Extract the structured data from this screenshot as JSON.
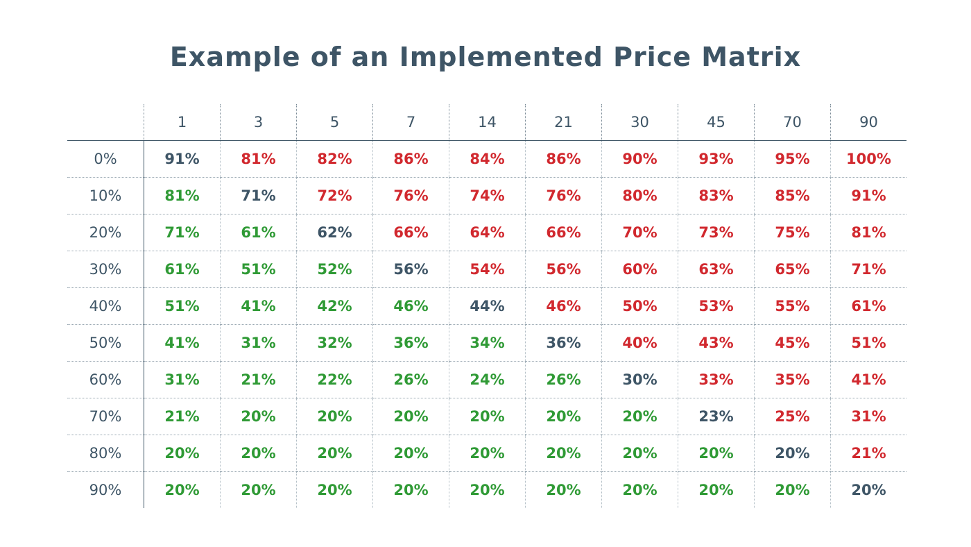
{
  "chart_data": {
    "type": "table",
    "title": "Example of an Implemented Price Matrix",
    "columns": [
      "1",
      "3",
      "5",
      "7",
      "14",
      "21",
      "30",
      "45",
      "70",
      "90"
    ],
    "rows": [
      "0%",
      "10%",
      "20%",
      "30%",
      "40%",
      "50%",
      "60%",
      "70%",
      "80%",
      "90%"
    ],
    "values": [
      [
        "91%",
        "81%",
        "82%",
        "86%",
        "84%",
        "86%",
        "90%",
        "93%",
        "95%",
        "100%"
      ],
      [
        "81%",
        "71%",
        "72%",
        "76%",
        "74%",
        "76%",
        "80%",
        "83%",
        "85%",
        "91%"
      ],
      [
        "71%",
        "61%",
        "62%",
        "66%",
        "64%",
        "66%",
        "70%",
        "73%",
        "75%",
        "81%"
      ],
      [
        "61%",
        "51%",
        "52%",
        "56%",
        "54%",
        "56%",
        "60%",
        "63%",
        "65%",
        "71%"
      ],
      [
        "51%",
        "41%",
        "42%",
        "46%",
        "44%",
        "46%",
        "50%",
        "53%",
        "55%",
        "61%"
      ],
      [
        "41%",
        "31%",
        "32%",
        "36%",
        "34%",
        "36%",
        "40%",
        "43%",
        "45%",
        "51%"
      ],
      [
        "31%",
        "21%",
        "22%",
        "26%",
        "24%",
        "26%",
        "30%",
        "33%",
        "35%",
        "41%"
      ],
      [
        "21%",
        "20%",
        "20%",
        "20%",
        "20%",
        "20%",
        "20%",
        "23%",
        "25%",
        "31%"
      ],
      [
        "20%",
        "20%",
        "20%",
        "20%",
        "20%",
        "20%",
        "20%",
        "20%",
        "20%",
        "21%"
      ],
      [
        "20%",
        "20%",
        "20%",
        "20%",
        "20%",
        "20%",
        "20%",
        "20%",
        "20%",
        "20%"
      ]
    ],
    "cell_status": [
      [
        "base",
        "above",
        "above",
        "above",
        "above",
        "above",
        "above",
        "above",
        "above",
        "above"
      ],
      [
        "below",
        "base",
        "above",
        "above",
        "above",
        "above",
        "above",
        "above",
        "above",
        "above"
      ],
      [
        "below",
        "below",
        "base",
        "above",
        "above",
        "above",
        "above",
        "above",
        "above",
        "above"
      ],
      [
        "below",
        "below",
        "below",
        "base",
        "above",
        "above",
        "above",
        "above",
        "above",
        "above"
      ],
      [
        "below",
        "below",
        "below",
        "below",
        "base",
        "above",
        "above",
        "above",
        "above",
        "above"
      ],
      [
        "below",
        "below",
        "below",
        "below",
        "below",
        "base",
        "above",
        "above",
        "above",
        "above"
      ],
      [
        "below",
        "below",
        "below",
        "below",
        "below",
        "below",
        "base",
        "above",
        "above",
        "above"
      ],
      [
        "below",
        "below",
        "below",
        "below",
        "below",
        "below",
        "below",
        "base",
        "above",
        "above"
      ],
      [
        "below",
        "below",
        "below",
        "below",
        "below",
        "below",
        "below",
        "below",
        "base",
        "above"
      ],
      [
        "below",
        "below",
        "below",
        "below",
        "below",
        "below",
        "below",
        "below",
        "below",
        "base"
      ]
    ],
    "colors": {
      "base": "#3e5566",
      "above": "#d1282e",
      "below": "#2f9a35",
      "header": "#3e5566"
    }
  }
}
